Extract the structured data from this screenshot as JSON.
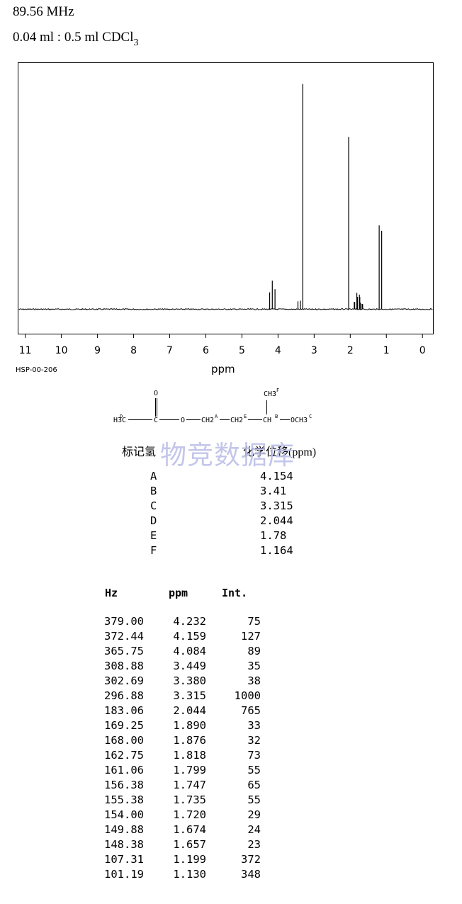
{
  "header": {
    "frequency": "89.56 MHz",
    "sample_main": "0.04 ml : 0.5 ml CDCl",
    "sample_sub": "3"
  },
  "sample_id": "HSP-00-206",
  "structure": {
    "carbonyl_o": "O",
    "ch3d": "H3C",
    "ch3d_label": "D",
    "c": "C",
    "o1": "O",
    "ch2a": "CH2",
    "ch2a_label": "A",
    "ch2e": "CH2",
    "ch2e_label": "E",
    "ch": "CH",
    "ch_label": "B",
    "och3": "OCH3",
    "och3_label": "C",
    "ch3f": "CH3",
    "ch3f_label": "F"
  },
  "assignment": {
    "header_left": "标记氢",
    "header_right": "化学位移(ppm)",
    "watermark": "物竞数据库",
    "rows": [
      {
        "label": "A",
        "shift": "4.154"
      },
      {
        "label": "B",
        "shift": "3.41"
      },
      {
        "label": "C",
        "shift": "3.315"
      },
      {
        "label": "D",
        "shift": "2.044"
      },
      {
        "label": "E",
        "shift": "1.78"
      },
      {
        "label": "F",
        "shift": "1.164"
      }
    ]
  },
  "peak_table": {
    "headers": [
      "Hz",
      "ppm",
      "Int."
    ],
    "rows": [
      [
        "379.00",
        "4.232",
        "75"
      ],
      [
        "372.44",
        "4.159",
        "127"
      ],
      [
        "365.75",
        "4.084",
        "89"
      ],
      [
        "308.88",
        "3.449",
        "35"
      ],
      [
        "302.69",
        "3.380",
        "38"
      ],
      [
        "296.88",
        "3.315",
        "1000"
      ],
      [
        "183.06",
        "2.044",
        "765"
      ],
      [
        "169.25",
        "1.890",
        "33"
      ],
      [
        "168.00",
        "1.876",
        "32"
      ],
      [
        "162.75",
        "1.818",
        "73"
      ],
      [
        "161.06",
        "1.799",
        "55"
      ],
      [
        "156.38",
        "1.747",
        "65"
      ],
      [
        "155.38",
        "1.735",
        "55"
      ],
      [
        "154.00",
        "1.720",
        "29"
      ],
      [
        "149.88",
        "1.674",
        "24"
      ],
      [
        "148.38",
        "1.657",
        "23"
      ],
      [
        "107.31",
        "1.199",
        "372"
      ],
      [
        "101.19",
        "1.130",
        "348"
      ]
    ]
  },
  "chart_data": {
    "type": "line",
    "title": "",
    "xlabel": "ppm",
    "ylabel": "",
    "xlim": [
      11.2,
      -0.3
    ],
    "x_reversed": true,
    "ylim": [
      0,
      1100
    ],
    "x_ticks": [
      11,
      10,
      9,
      8,
      7,
      6,
      5,
      4,
      3,
      2,
      1,
      0
    ],
    "peaks": [
      {
        "ppm": 4.232,
        "intensity": 75
      },
      {
        "ppm": 4.159,
        "intensity": 127
      },
      {
        "ppm": 4.084,
        "intensity": 89
      },
      {
        "ppm": 3.449,
        "intensity": 35
      },
      {
        "ppm": 3.38,
        "intensity": 38
      },
      {
        "ppm": 3.315,
        "intensity": 1000
      },
      {
        "ppm": 2.044,
        "intensity": 765
      },
      {
        "ppm": 1.89,
        "intensity": 33
      },
      {
        "ppm": 1.876,
        "intensity": 32
      },
      {
        "ppm": 1.818,
        "intensity": 73
      },
      {
        "ppm": 1.799,
        "intensity": 55
      },
      {
        "ppm": 1.747,
        "intensity": 65
      },
      {
        "ppm": 1.735,
        "intensity": 55
      },
      {
        "ppm": 1.72,
        "intensity": 29
      },
      {
        "ppm": 1.674,
        "intensity": 24
      },
      {
        "ppm": 1.657,
        "intensity": 23
      },
      {
        "ppm": 1.199,
        "intensity": 372
      },
      {
        "ppm": 1.13,
        "intensity": 348
      }
    ],
    "grid": false,
    "legend": "none"
  }
}
